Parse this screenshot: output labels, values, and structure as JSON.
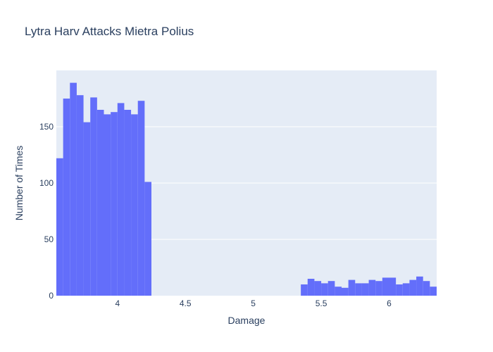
{
  "chart_data": {
    "type": "bar",
    "title": "Lytra Harv Attacks Mietra Polius",
    "xlabel": "Damage",
    "ylabel": "Number of Times",
    "xlim": [
      3.55,
      6.35
    ],
    "ylim": [
      0,
      200
    ],
    "bin_width": 0.05,
    "x_ticks": [
      4,
      4.5,
      5,
      5.5,
      6
    ],
    "x_tick_labels": [
      "4",
      "4.5",
      "5",
      "5.5",
      "6"
    ],
    "y_ticks": [
      0,
      50,
      100,
      150
    ],
    "y_tick_labels": [
      "0",
      "50",
      "100",
      "150"
    ],
    "grid": true,
    "colors": {
      "bar": "#636efa",
      "plot_bg": "#e5ecf6",
      "grid": "#ffffff",
      "text": "#2a3f5f"
    },
    "x": [
      3.55,
      3.6,
      3.65,
      3.7,
      3.75,
      3.8,
      3.85,
      3.9,
      3.95,
      4.0,
      4.05,
      4.1,
      4.15,
      4.2,
      5.35,
      5.4,
      5.45,
      5.5,
      5.55,
      5.6,
      5.65,
      5.7,
      5.75,
      5.8,
      5.85,
      5.9,
      5.95,
      6.0,
      6.05,
      6.1,
      6.15,
      6.2,
      6.25,
      6.3
    ],
    "values": [
      122,
      175,
      189,
      178,
      154,
      176,
      165,
      161,
      163,
      171,
      165,
      161,
      173,
      101,
      10,
      15,
      13,
      11,
      13,
      8,
      7,
      14,
      11,
      11,
      14,
      13,
      16,
      16,
      10,
      11,
      14,
      17,
      13,
      8
    ]
  }
}
